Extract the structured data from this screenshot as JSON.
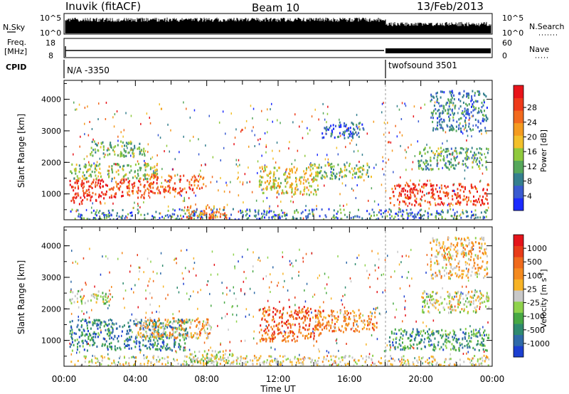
{
  "header": {
    "station": "Inuvik (fitACF)",
    "beam": "Beam 10",
    "date": "13/Feb/2013"
  },
  "status_panels": {
    "nsky_label": "N.Sky",
    "nsky_ticks": [
      "10^5",
      "10^0"
    ],
    "freq_label_1": "Freq.",
    "freq_label_2": "[MHz]",
    "freq_ticks": [
      "18",
      "8"
    ],
    "nsearch_label": "N.Search",
    "nsearch_ticks": [
      "10^5",
      "10^0"
    ],
    "nave_label": "Nave",
    "nave_ticks": [
      "60",
      "0"
    ],
    "cpid_label": "CPID",
    "cpid_segments": [
      {
        "label": "N/A -3350",
        "start_hour": 0,
        "end_hour": 18
      },
      {
        "label": "twofsound 3501",
        "start_hour": 18,
        "end_hour": 24
      }
    ]
  },
  "chart_data": [
    {
      "type": "heatmap",
      "title": "",
      "ylabel": "Slant Range [km]",
      "ylim": [
        180,
        4600
      ],
      "yticks": [
        1000,
        2000,
        3000,
        4000
      ],
      "xlim": [
        0,
        24
      ],
      "colorbar": {
        "label": "Power [dB]",
        "ticks": [
          "4",
          "8",
          "12",
          "16",
          "20",
          "24",
          "28"
        ],
        "colors": [
          "#1c2bff",
          "#3a5bd0",
          "#357f8e",
          "#56a75b",
          "#8fc93d",
          "#f2c02b",
          "#f49b20",
          "#f26a1e",
          "#ee3a1a",
          "#e8141a"
        ]
      },
      "blobs": [
        {
          "t0": 0.3,
          "t1": 2.5,
          "r0": 700,
          "r1": 1500,
          "level": 0.9
        },
        {
          "t0": 2.5,
          "t1": 4.5,
          "r0": 900,
          "r1": 1500,
          "level": 0.82
        },
        {
          "t0": 4.5,
          "t1": 7.8,
          "r0": 1050,
          "r1": 1650,
          "level": 0.78
        },
        {
          "t0": 6.8,
          "t1": 9.2,
          "r0": 250,
          "r1": 650,
          "level": 0.72
        },
        {
          "t0": 0.3,
          "t1": 5.2,
          "r0": 1500,
          "r1": 2000,
          "level": 0.45
        },
        {
          "t0": 1.4,
          "t1": 4.5,
          "r0": 2200,
          "r1": 2700,
          "level": 0.38
        },
        {
          "t0": 10.9,
          "t1": 14.3,
          "r0": 1000,
          "r1": 1900,
          "level": 0.55
        },
        {
          "t0": 13.8,
          "t1": 17.2,
          "r0": 1500,
          "r1": 2000,
          "level": 0.4
        },
        {
          "t0": 14.3,
          "t1": 16.8,
          "r0": 2800,
          "r1": 3300,
          "level": 0.18
        },
        {
          "t0": 18.2,
          "t1": 23.8,
          "r0": 650,
          "r1": 1350,
          "level": 0.85
        },
        {
          "t0": 19.8,
          "t1": 23.8,
          "r0": 1800,
          "r1": 2500,
          "level": 0.35
        },
        {
          "t0": 20.5,
          "t1": 23.7,
          "r0": 3000,
          "r1": 4300,
          "level": 0.25
        }
      ]
    },
    {
      "type": "heatmap",
      "title": "",
      "ylabel": "Slant Range [km]",
      "xlabel": "Time UT",
      "xticks": [
        "00:00",
        "04:00",
        "08:00",
        "12:00",
        "16:00",
        "20:00",
        "00:00"
      ],
      "ylim": [
        180,
        4600
      ],
      "yticks": [
        1000,
        2000,
        3000,
        4000
      ],
      "xlim": [
        0,
        24
      ],
      "colorbar": {
        "label": "Velocity [m s",
        "label_sup": "-1",
        "label_end": "]",
        "ticks": [
          "1000",
          "500",
          "100",
          "25",
          "-25",
          "-100",
          "-500",
          "-1000"
        ],
        "colors": [
          "#1c3fd0",
          "#2f6aa8",
          "#2f8a6f",
          "#47a844",
          "#8fd24c",
          "#c8c8c8",
          "#f7b326",
          "#f48a1f",
          "#ef6a1c",
          "#e83b18",
          "#e4141a"
        ]
      },
      "blobs": [
        {
          "t0": 0.3,
          "t1": 7.0,
          "r0": 700,
          "r1": 1700,
          "level": 0.22
        },
        {
          "t0": 4.0,
          "t1": 8.2,
          "r0": 1100,
          "r1": 1750,
          "level": 0.62
        },
        {
          "t0": 0.3,
          "t1": 2.5,
          "r0": 2200,
          "r1": 2600,
          "level": 0.45
        },
        {
          "t0": 6.8,
          "t1": 9.5,
          "r0": 250,
          "r1": 700,
          "level": 0.45
        },
        {
          "t0": 10.9,
          "t1": 14.5,
          "r0": 1000,
          "r1": 2100,
          "level": 0.78
        },
        {
          "t0": 14.0,
          "t1": 17.5,
          "r0": 1300,
          "r1": 2000,
          "level": 0.68
        },
        {
          "t0": 18.2,
          "t1": 23.8,
          "r0": 700,
          "r1": 1400,
          "level": 0.25
        },
        {
          "t0": 20.0,
          "t1": 23.8,
          "r0": 1900,
          "r1": 2600,
          "level": 0.5
        },
        {
          "t0": 20.5,
          "t1": 23.7,
          "r0": 3000,
          "r1": 4300,
          "level": 0.6
        }
      ]
    }
  ]
}
